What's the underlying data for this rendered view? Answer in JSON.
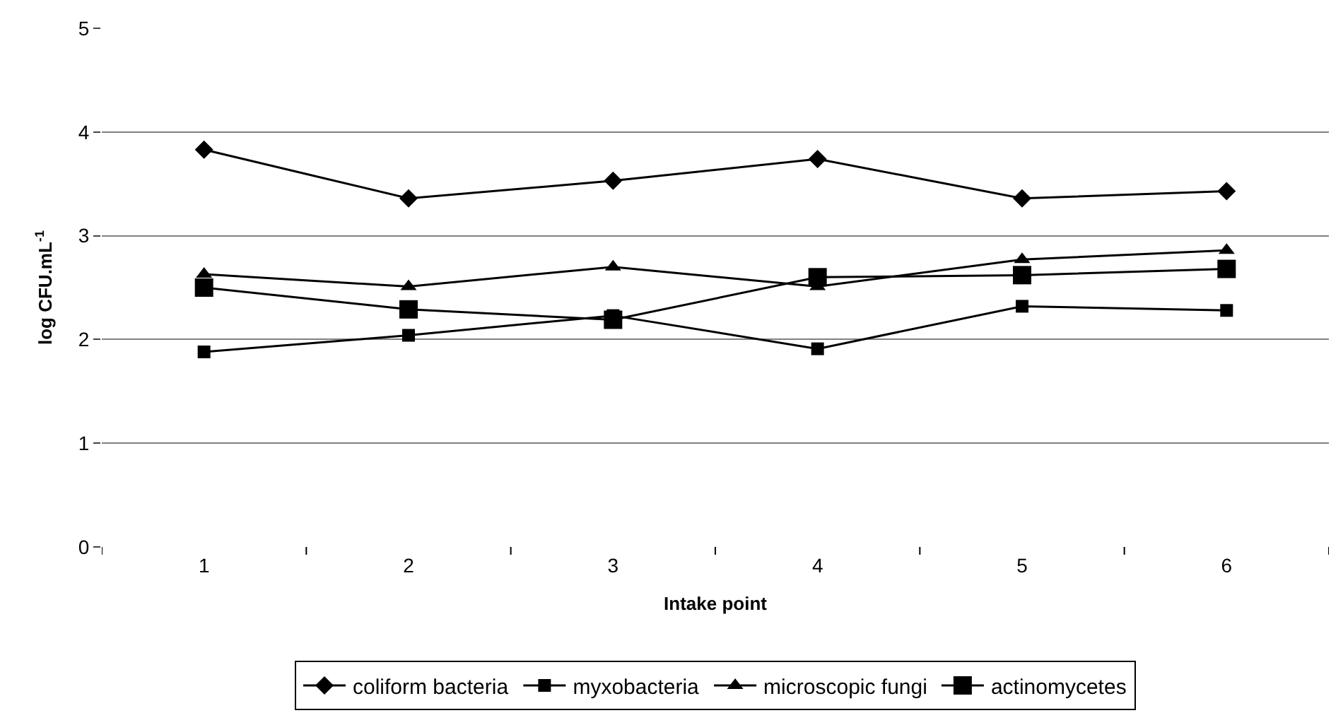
{
  "chart_data": {
    "type": "line",
    "xlabel": "Intake point",
    "ylabel": "log CFU.mL$^{-1}$",
    "categories": [
      "1",
      "2",
      "3",
      "4",
      "5",
      "6"
    ],
    "series": [
      {
        "name": "coliform bacteria",
        "color": "#000000",
        "marker": "diamond",
        "values": [
          3.83,
          3.36,
          3.53,
          3.74,
          3.36,
          3.43
        ]
      },
      {
        "name": "myxobacteria",
        "color": "#000000",
        "marker": "square",
        "values": [
          1.88,
          2.04,
          2.23,
          1.91,
          2.32,
          2.28
        ]
      },
      {
        "name": "microscopic fungi",
        "color": "#000000",
        "marker": "triangle",
        "values": [
          2.63,
          2.51,
          2.7,
          2.51,
          2.77,
          2.86
        ]
      },
      {
        "name": "actinomycetes",
        "color": "#000000",
        "marker": "square",
        "values": [
          2.5,
          2.29,
          2.19,
          2.6,
          2.62,
          2.68
        ]
      }
    ],
    "ylim": [
      0,
      5
    ],
    "yticks": [
      0,
      1,
      2,
      3,
      4,
      5
    ],
    "grid": "y",
    "legend": "bottom",
    "line_style": "solid"
  }
}
